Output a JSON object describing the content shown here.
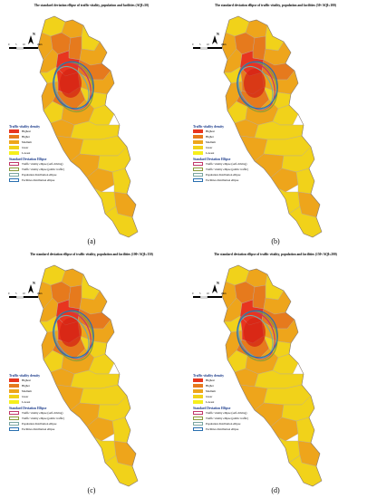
{
  "panels": [
    {
      "id": "a",
      "title": "The standard deviation ellipse of traffic vitality, population and facilities (AQI≤50)",
      "caption": "(a)"
    },
    {
      "id": "b",
      "title": "The standard deviation ellipse of traffic vitality, population and facilities (50<AQI≤100)",
      "caption": "(b)"
    },
    {
      "id": "c",
      "title": "The standard deviation ellipse of traffic vitality, population and facilities (100<AQI≤150)",
      "caption": "(c)"
    },
    {
      "id": "d",
      "title": "The standard deviation ellipse of traffic vitality, population and facilities (150<AQI≤200)",
      "caption": "(d)"
    }
  ],
  "legend": {
    "density_title": "Traffic vitality density",
    "density_classes": [
      {
        "label": "Highest",
        "color": "#e8351f"
      },
      {
        "label": "Higher",
        "color": "#e67a1d"
      },
      {
        "label": "Medium",
        "color": "#eea51b"
      },
      {
        "label": "lower",
        "color": "#f1d21a"
      },
      {
        "label": "Lowest",
        "color": "#f6ef1c"
      }
    ],
    "ellipse_title": "Standard Deviation Ellipse",
    "ellipses": [
      {
        "label": "Traffic vitality ellipse (self-driving)",
        "color": "#c0386a"
      },
      {
        "label": "Traffic vitality ellipse (public traffic)",
        "color": "#8a9a3a"
      },
      {
        "label": "Population distribution ellipse",
        "color": "#7aa6a0"
      },
      {
        "label": "Facilities distribution ellipse",
        "color": "#2a6fb0"
      }
    ]
  },
  "north_label": "N",
  "scale": {
    "labels": [
      "0",
      "5",
      "10",
      "20"
    ],
    "unit": "km"
  }
}
